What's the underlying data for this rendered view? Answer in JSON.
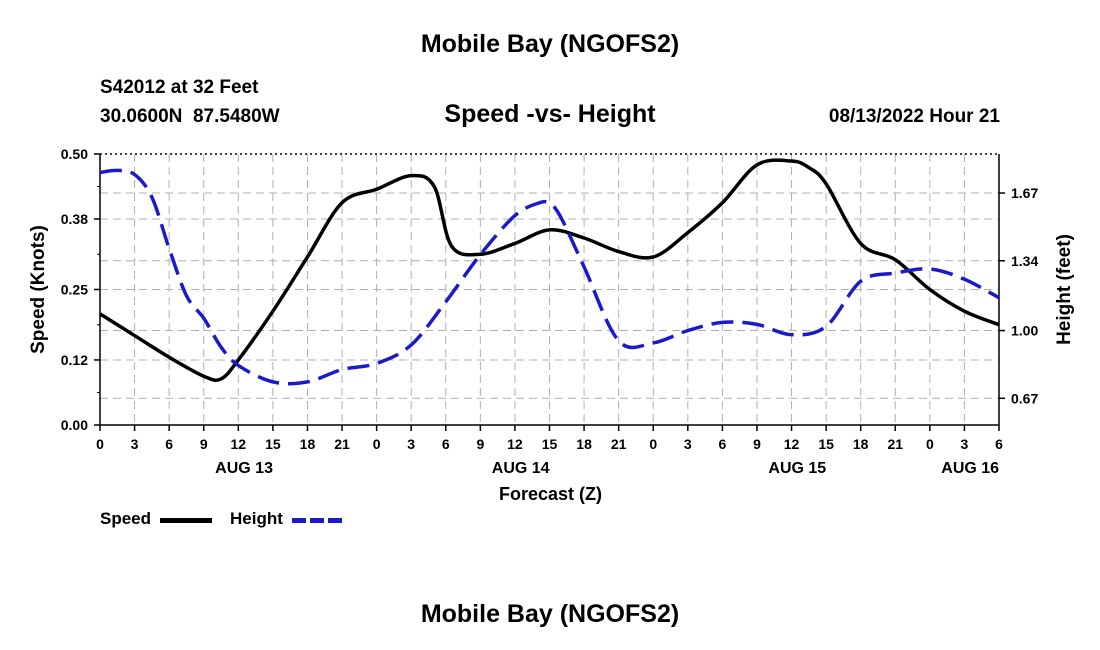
{
  "header": {
    "title": "Mobile Bay (NGOFS2)",
    "station": "S42012 at 32 Feet",
    "coords": "30.0600N  87.5480W",
    "subtitle": "Speed -vs- Height",
    "timestamp": "08/13/2022 Hour 21"
  },
  "footer": {
    "title": "Mobile Bay (NGOFS2)"
  },
  "legend": {
    "speed_label": "Speed",
    "height_label": "Height"
  },
  "colors": {
    "speed": "#000000",
    "height": "#1a1acc",
    "grid": "#b0b0b0"
  },
  "chart_data": {
    "type": "line",
    "title": "Speed -vs- Height",
    "xlabel": "Forecast (Z)",
    "ylabel": "Speed (Knots)",
    "y2label": "Height (feet)",
    "x_unit": "hours since 08/12 00Z",
    "xlim": [
      24,
      102
    ],
    "ylim": [
      0.0,
      0.5
    ],
    "y2lim": [
      0.54,
      1.86
    ],
    "x_ticks": [
      24,
      27,
      30,
      33,
      36,
      39,
      42,
      45,
      48,
      51,
      54,
      57,
      60,
      63,
      66,
      69,
      72,
      75,
      78,
      81,
      84,
      87,
      90,
      93,
      96,
      99,
      102
    ],
    "x_tick_labels": [
      "0",
      "3",
      "6",
      "9",
      "12",
      "15",
      "18",
      "21",
      "0",
      "3",
      "6",
      "9",
      "12",
      "15",
      "18",
      "21",
      "0",
      "3",
      "6",
      "9",
      "12",
      "15",
      "18",
      "21",
      "0",
      "3",
      "6"
    ],
    "date_labels": [
      {
        "x": 36.5,
        "label": "AUG 13"
      },
      {
        "x": 60.5,
        "label": "AUG 14"
      },
      {
        "x": 84.5,
        "label": "AUG 15"
      },
      {
        "x": 99.5,
        "label": "AUG 16"
      }
    ],
    "y_ticks": [
      0.0,
      0.12,
      0.25,
      0.38,
      0.5
    ],
    "y_tick_labels": [
      "0.00",
      "0.12",
      "0.25",
      "0.38",
      "0.50"
    ],
    "y2_ticks": [
      0.67,
      1.0,
      1.34,
      1.67
    ],
    "y2_tick_labels": [
      "0.67",
      "1.00",
      "1.34",
      "1.67"
    ],
    "grid": true,
    "series": [
      {
        "name": "Speed",
        "axis": "left",
        "style": "solid",
        "x": [
          24,
          27,
          30,
          33,
          34.5,
          36,
          39,
          42,
          45,
          48,
          51,
          53,
          54.5,
          57,
          60,
          63,
          66,
          69,
          72,
          75,
          78,
          81,
          84,
          85.5,
          87,
          90,
          93,
          96,
          99,
          102
        ],
        "values": [
          0.205,
          0.165,
          0.125,
          0.09,
          0.085,
          0.12,
          0.21,
          0.31,
          0.41,
          0.435,
          0.46,
          0.44,
          0.33,
          0.315,
          0.335,
          0.36,
          0.345,
          0.32,
          0.31,
          0.355,
          0.41,
          0.48,
          0.487,
          0.475,
          0.445,
          0.335,
          0.305,
          0.25,
          0.21,
          0.185
        ]
      },
      {
        "name": "Height",
        "axis": "right",
        "style": "dashed",
        "x": [
          24,
          25.5,
          27,
          28.5,
          30,
          31.5,
          33,
          34.5,
          36,
          39,
          42,
          45,
          48,
          51,
          54,
          57,
          60,
          62,
          63,
          64,
          66,
          69,
          72,
          75,
          78,
          81,
          84,
          87,
          90,
          93,
          96,
          99,
          102
        ],
        "values": [
          1.77,
          1.78,
          1.76,
          1.65,
          1.4,
          1.17,
          1.06,
          0.92,
          0.83,
          0.75,
          0.75,
          0.81,
          0.84,
          0.93,
          1.14,
          1.37,
          1.56,
          1.62,
          1.62,
          1.55,
          1.31,
          0.95,
          0.94,
          1.0,
          1.04,
          1.03,
          0.98,
          1.02,
          1.24,
          1.28,
          1.3,
          1.25,
          1.16
        ]
      }
    ]
  }
}
